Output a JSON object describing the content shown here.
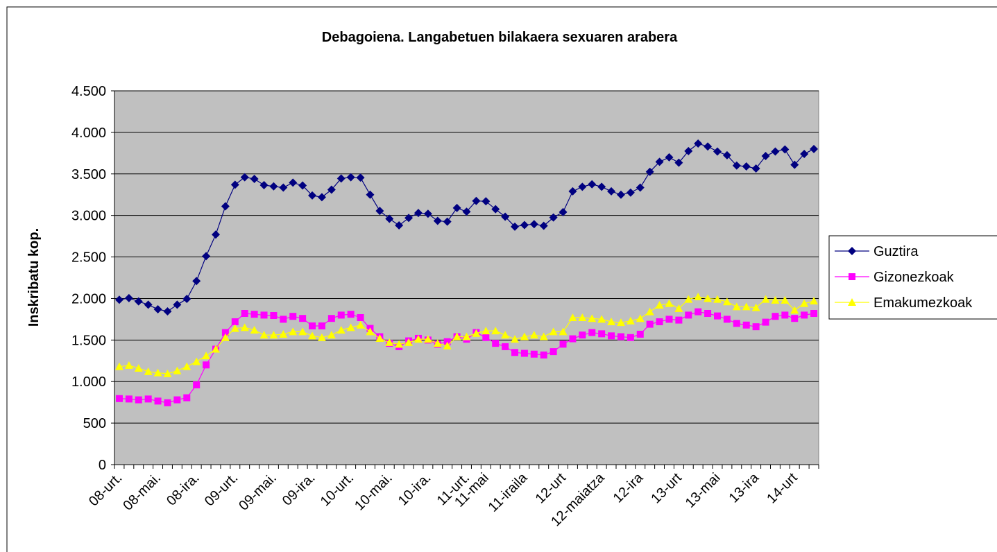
{
  "chart_data": {
    "type": "line",
    "title": "Debagoiena. Langabetuen bilakaera sexuaren arabera",
    "y_label": "Inskribatu kop.",
    "categories": [
      "08-urt.",
      null,
      null,
      null,
      "08-mai.",
      null,
      null,
      null,
      "08-ira.",
      null,
      null,
      null,
      "09-urt.",
      null,
      null,
      null,
      "09-mai.",
      null,
      null,
      null,
      "09-ira.",
      null,
      null,
      null,
      "10-urt.",
      null,
      null,
      null,
      "10-mai.",
      null,
      null,
      null,
      "10-ira.",
      null,
      null,
      null,
      "11-urt.",
      null,
      "11-mai",
      null,
      null,
      null,
      "11-iraila",
      null,
      null,
      null,
      "12-urt",
      null,
      null,
      null,
      "12-maiatza",
      null,
      null,
      null,
      "12-ira",
      null,
      null,
      null,
      "13-urt",
      null,
      null,
      null,
      "13-mai",
      null,
      null,
      null,
      "13-ira",
      null,
      null,
      null,
      "14-urt",
      null,
      null
    ],
    "series": [
      {
        "name": "Guztira",
        "color": "#000080",
        "marker": "diamond",
        "values": [
          1985,
          2005,
          1965,
          1925,
          1870,
          1845,
          1925,
          1995,
          2210,
          2510,
          2770,
          3110,
          3370,
          3460,
          3440,
          3365,
          3350,
          3335,
          3395,
          3360,
          3240,
          3220,
          3310,
          3445,
          3460,
          3455,
          3250,
          3055,
          2960,
          2880,
          2970,
          3030,
          3020,
          2935,
          2925,
          3090,
          3045,
          3175,
          3170,
          3075,
          2985,
          2865,
          2885,
          2895,
          2875,
          2975,
          3040,
          3290,
          3345,
          3375,
          3345,
          3290,
          3250,
          3275,
          3335,
          3525,
          3645,
          3700,
          3635,
          3775,
          3865,
          3830,
          3770,
          3725,
          3600,
          3590,
          3565,
          3715,
          3770,
          3795,
          3610,
          3740,
          3800
        ]
      },
      {
        "name": "Gizonezkoak",
        "color": "#ff00ff",
        "marker": "square",
        "values": [
          795,
          790,
          780,
          790,
          765,
          745,
          780,
          805,
          960,
          1200,
          1390,
          1590,
          1720,
          1820,
          1810,
          1800,
          1795,
          1750,
          1785,
          1760,
          1670,
          1670,
          1760,
          1800,
          1810,
          1770,
          1640,
          1540,
          1460,
          1420,
          1490,
          1520,
          1500,
          1450,
          1480,
          1540,
          1510,
          1590,
          1530,
          1460,
          1420,
          1350,
          1340,
          1330,
          1320,
          1360,
          1450,
          1515,
          1560,
          1590,
          1575,
          1550,
          1540,
          1530,
          1570,
          1690,
          1720,
          1750,
          1740,
          1800,
          1840,
          1820,
          1790,
          1750,
          1700,
          1680,
          1660,
          1715,
          1785,
          1800,
          1760,
          1800,
          1820
        ]
      },
      {
        "name": "Emakumezkoak",
        "color": "#ffff00",
        "marker": "triangle",
        "values": [
          1180,
          1195,
          1160,
          1120,
          1105,
          1095,
          1130,
          1180,
          1240,
          1310,
          1390,
          1530,
          1640,
          1650,
          1620,
          1560,
          1560,
          1570,
          1600,
          1600,
          1550,
          1530,
          1560,
          1620,
          1650,
          1680,
          1600,
          1520,
          1470,
          1450,
          1470,
          1510,
          1510,
          1460,
          1430,
          1540,
          1540,
          1580,
          1610,
          1610,
          1560,
          1510,
          1540,
          1560,
          1540,
          1600,
          1600,
          1770,
          1770,
          1760,
          1750,
          1720,
          1710,
          1730,
          1760,
          1840,
          1920,
          1940,
          1880,
          1990,
          2020,
          2000,
          1990,
          1960,
          1900,
          1900,
          1890,
          1990,
          1980,
          1980,
          1860,
          1940,
          1970
        ]
      }
    ],
    "ylim": [
      0,
      4500
    ],
    "yticks": [
      0,
      500,
      {
        "value": 1000,
        "label": "1.000"
      },
      {
        "value": 1500,
        "label": "1.500"
      },
      {
        "value": 2000,
        "label": "2.000"
      },
      {
        "value": 2500,
        "label": "2.500"
      },
      {
        "value": 3000,
        "label": "3.000"
      },
      {
        "value": 3500,
        "label": "3.500"
      },
      {
        "value": 4000,
        "label": "4.000"
      },
      {
        "value": 4500,
        "label": "4.500"
      }
    ],
    "grid": true,
    "legend": "right"
  }
}
